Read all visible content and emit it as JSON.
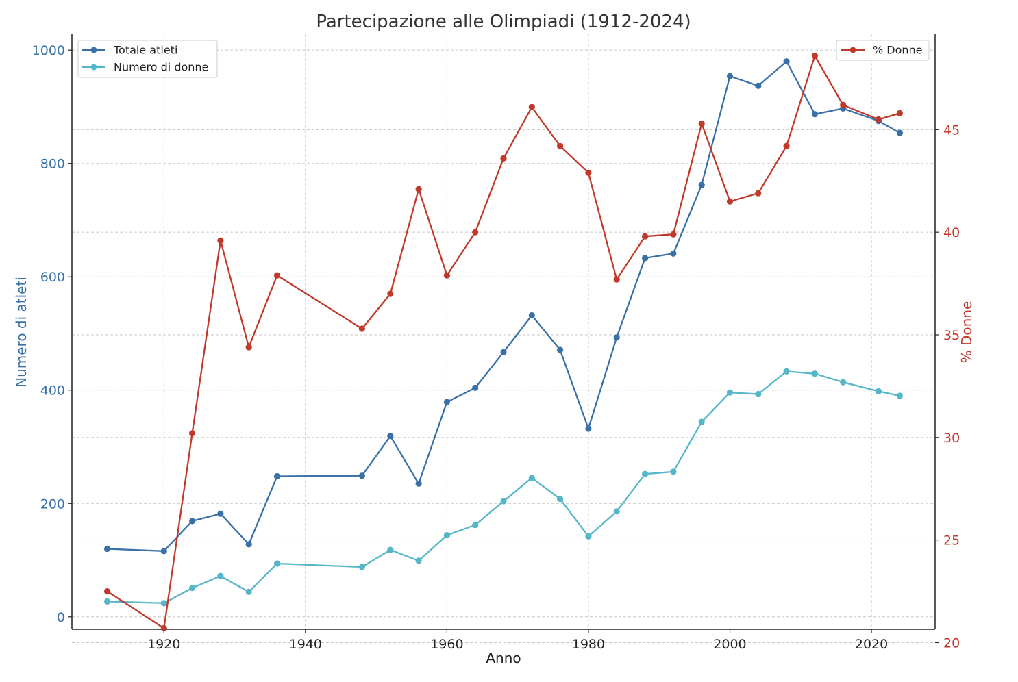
{
  "chart_data": {
    "type": "line",
    "title": "Partecipazione alle Olimpiadi (1912-2024)",
    "xlabel": "Anno",
    "ylabel": "Numero di atleti",
    "ylabel_right": "% Donne",
    "x": [
      1912,
      1920,
      1924,
      1928,
      1932,
      1936,
      1948,
      1952,
      1956,
      1960,
      1964,
      1968,
      1972,
      1976,
      1980,
      1984,
      1988,
      1992,
      1996,
      2000,
      2004,
      2008,
      2012,
      2016,
      2021,
      2024
    ],
    "xlim": [
      1907,
      2029
    ],
    "xticks": [
      1920,
      1940,
      1960,
      1980,
      2000,
      2020
    ],
    "ylim": [
      -22,
      1028
    ],
    "yticks": [
      0,
      200,
      400,
      600,
      800,
      1000
    ],
    "ylim_right": [
      20.65,
      49.65
    ],
    "yticks_right": [
      20,
      25,
      30,
      35,
      40,
      45
    ],
    "grid": true,
    "series": [
      {
        "name": "Totale atleti",
        "axis": "left",
        "color": "#3a70a8",
        "values": [
          120,
          116,
          169,
          182,
          128,
          248,
          249,
          319,
          235,
          379,
          404,
          467,
          532,
          471,
          332,
          493,
          633,
          641,
          762,
          954,
          937,
          980,
          887,
          897,
          875,
          854
        ]
      },
      {
        "name": "Numero di donne",
        "axis": "left",
        "color": "#54b6c8",
        "values": [
          27,
          24,
          51,
          72,
          44,
          94,
          88,
          118,
          99,
          144,
          162,
          204,
          245,
          208,
          142,
          186,
          252,
          256,
          344,
          396,
          393,
          433,
          429,
          414,
          398,
          390
        ]
      },
      {
        "name": "% Donne",
        "axis": "right",
        "color": "#c0392b",
        "values": [
          22.5,
          20.7,
          30.2,
          39.6,
          34.4,
          37.9,
          35.3,
          37.0,
          42.1,
          37.9,
          40.0,
          43.6,
          46.1,
          44.2,
          42.9,
          37.7,
          39.8,
          39.9,
          45.3,
          41.5,
          41.9,
          44.2,
          48.6,
          46.2,
          45.5,
          45.8
        ]
      }
    ],
    "legends": [
      {
        "placement": "top-left",
        "series": [
          "Totale atleti",
          "Numero di donne"
        ]
      },
      {
        "placement": "top-right",
        "series": [
          "% Donne"
        ]
      }
    ],
    "colors": {
      "left_axis": "#3a70a8",
      "right_axis": "#c0392b",
      "title": "#333333"
    }
  }
}
